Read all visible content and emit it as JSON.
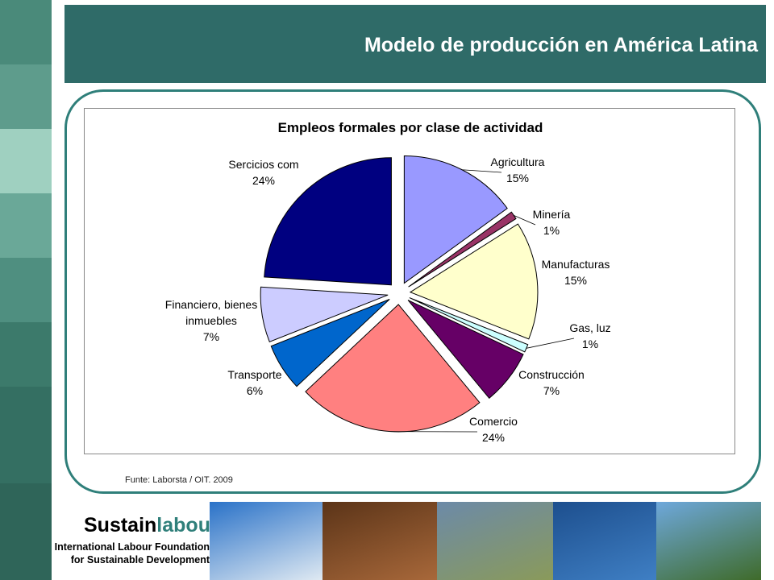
{
  "header": {
    "title": "Modelo de producción en América Latina"
  },
  "source_note": "Funte: Laborsta / OIT. 2009",
  "logo": {
    "name_part1": "Sustain",
    "name_part2": "labour",
    "line1": "International Labour Foundation",
    "line2": "for Sustainable Development"
  },
  "photos": [
    {
      "name": "snowy-trees-photo",
      "colors": [
        "#2a72c8",
        "#dfe9f2"
      ]
    },
    {
      "name": "logs-pile-photo",
      "colors": [
        "#5b3418",
        "#a8683a"
      ]
    },
    {
      "name": "lake-landscape-photo",
      "colors": [
        "#6c8aa8",
        "#8a9a5a"
      ]
    },
    {
      "name": "water-ripples-photo",
      "colors": [
        "#1d4f8e",
        "#3f7fc4"
      ]
    },
    {
      "name": "coffee-berries-photo",
      "colors": [
        "#6ea8dc",
        "#3f6b2a"
      ]
    }
  ],
  "chart_data": {
    "type": "pie",
    "title": "Empleos formales por clase de actividad",
    "legend": "none",
    "slices": [
      {
        "label": "Agricultura",
        "pct": "15%",
        "value": 15,
        "color": "#9999ff"
      },
      {
        "label": "Minería",
        "pct": "1%",
        "value": 1,
        "color": "#993366"
      },
      {
        "label": "Manufacturas",
        "pct": "15%",
        "value": 15,
        "color": "#ffffcc"
      },
      {
        "label": "Gas, luz",
        "pct": "1%",
        "value": 1,
        "color": "#ccffff"
      },
      {
        "label": "Construcción",
        "pct": "7%",
        "value": 7,
        "color": "#660066"
      },
      {
        "label": "Comercio",
        "pct": "24%",
        "value": 24,
        "color": "#ff8080"
      },
      {
        "label": "Transporte",
        "pct": "6%",
        "value": 6,
        "color": "#0066cc"
      },
      {
        "label": "Financiero, bienes inmuebles",
        "pct": "7%",
        "value": 7,
        "color": "#ccccff"
      },
      {
        "label": "Sercicios com",
        "pct": "24%",
        "value": 24,
        "color": "#000080"
      }
    ]
  }
}
